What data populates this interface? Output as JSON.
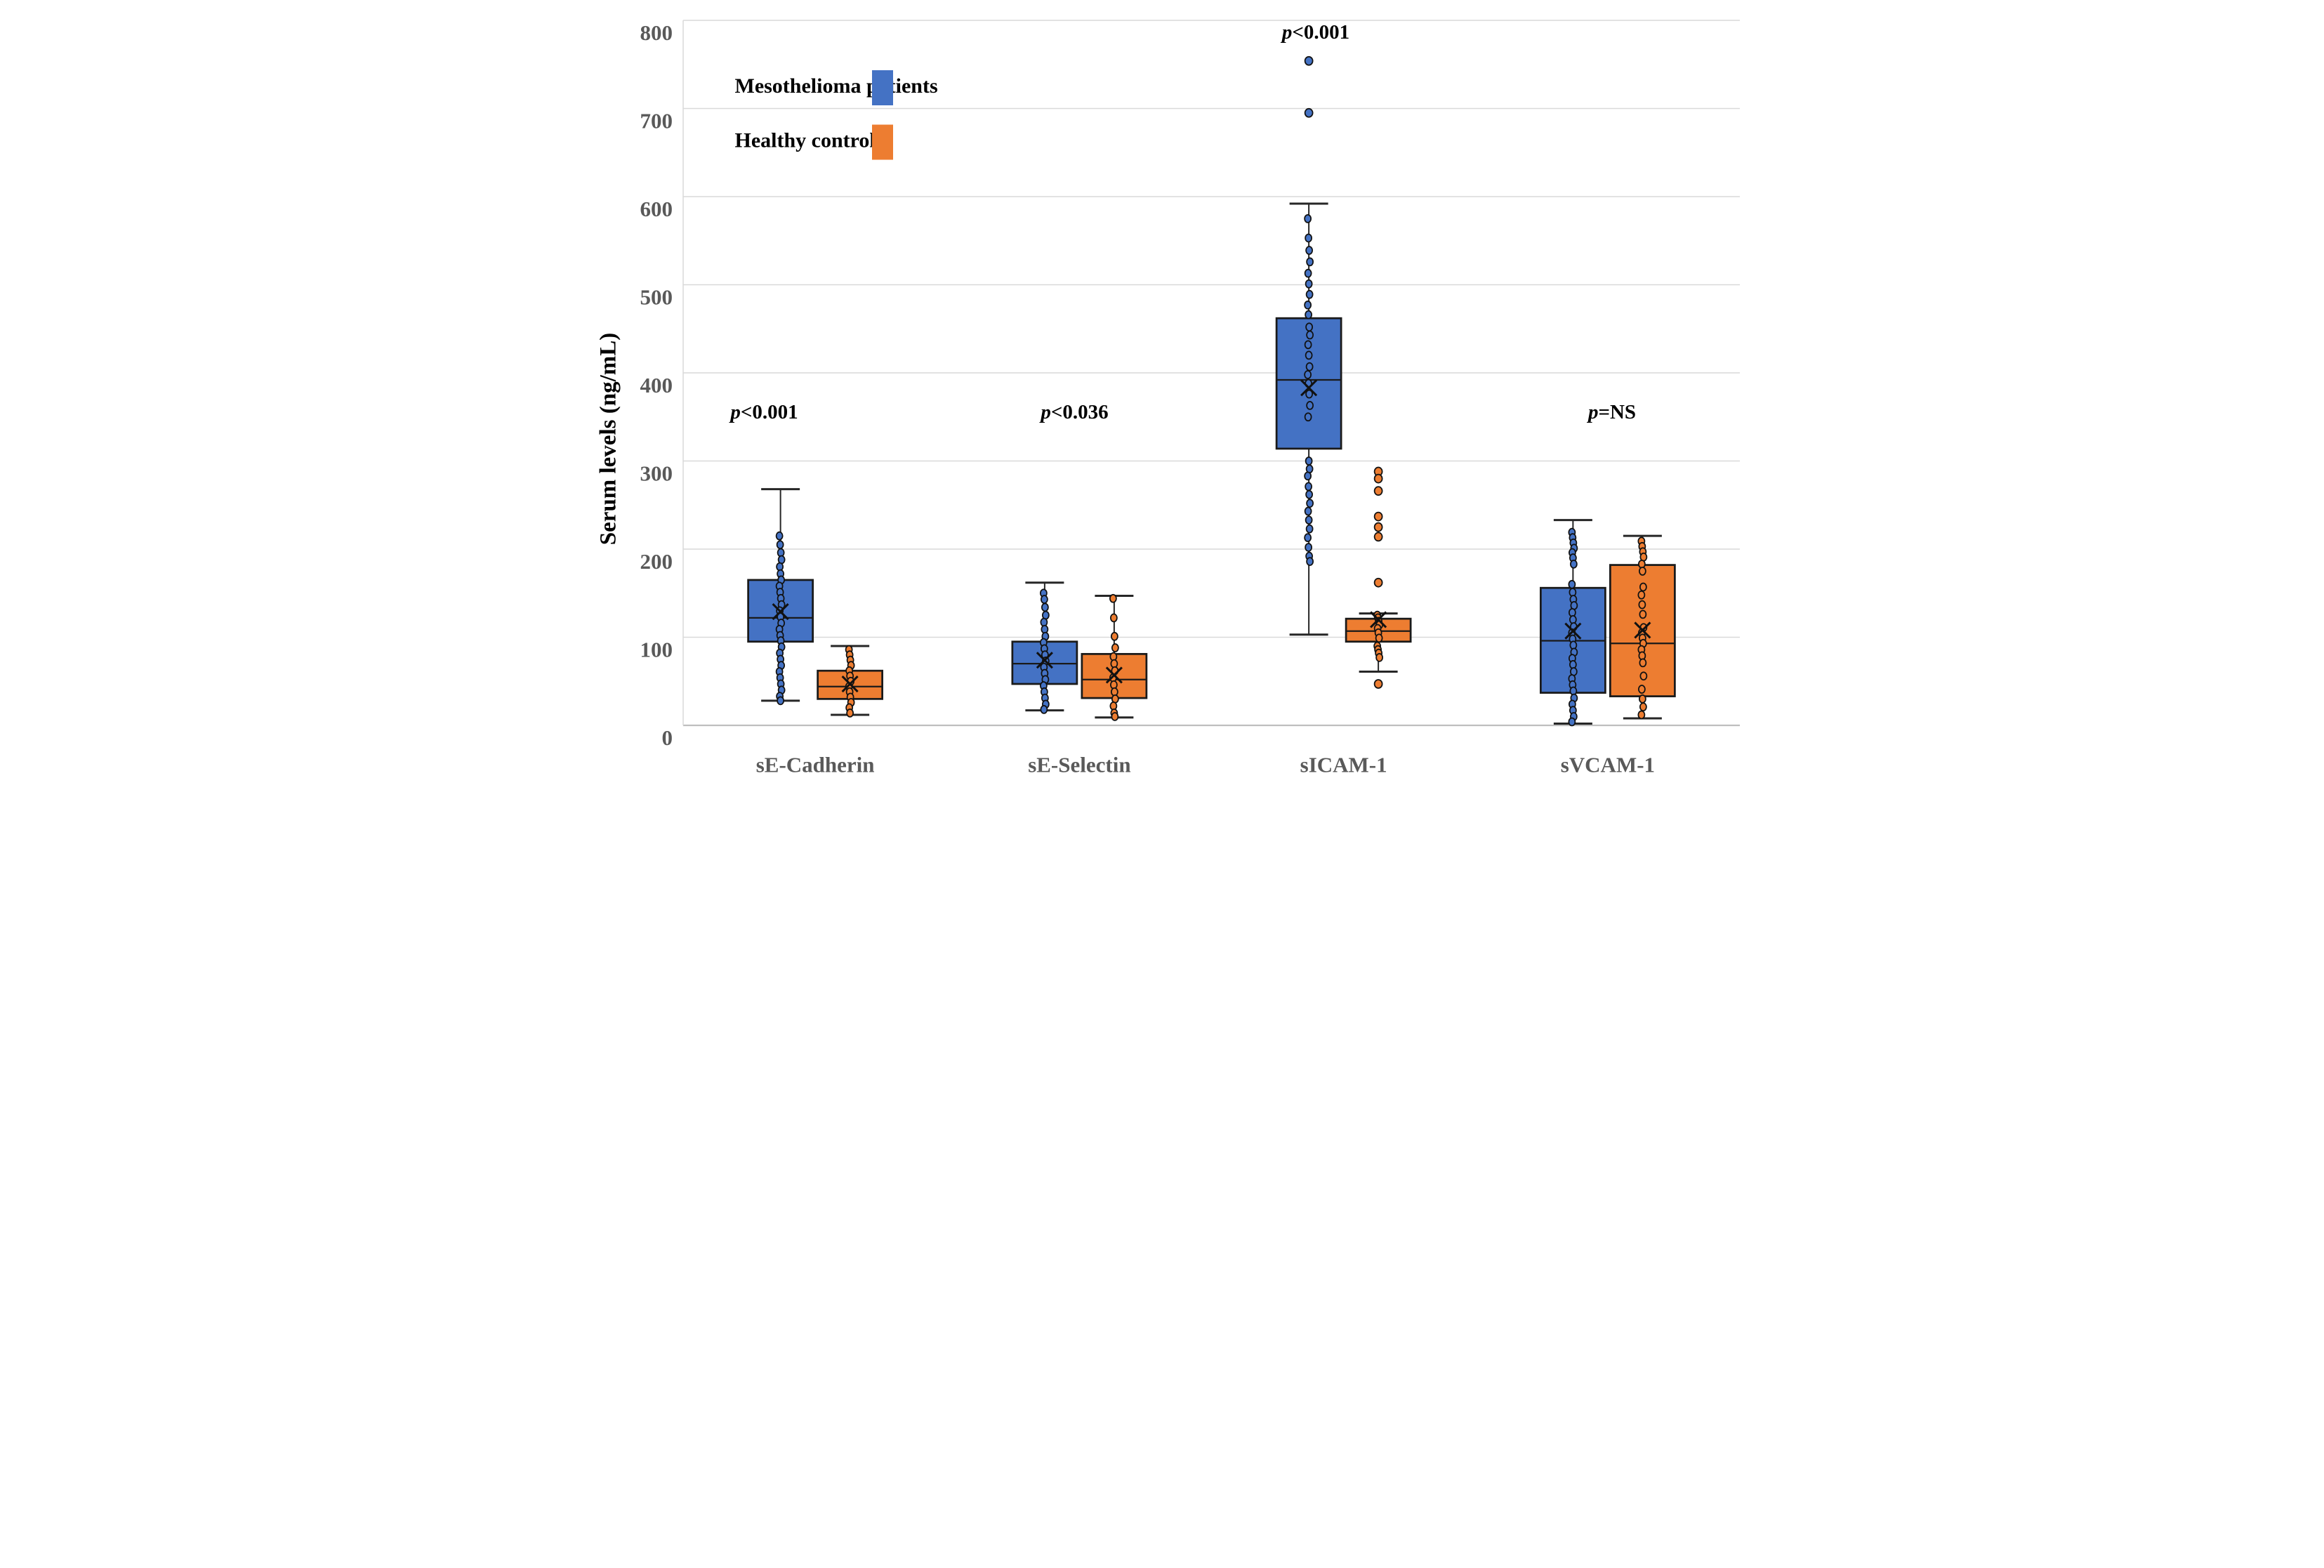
{
  "figure": {
    "background": "#ffffff"
  },
  "chart_data": {
    "type": "boxplot",
    "title": "",
    "xlabel": "",
    "ylabel": "Serum levels (ng/mL)",
    "ylim": [
      0,
      800
    ],
    "yticks": [
      0,
      100,
      200,
      300,
      400,
      500,
      600,
      700,
      800
    ],
    "grid": "horizontal",
    "legend_position": "top-left-inside",
    "categories": [
      "sE-Cadherin",
      "sE-Selectin",
      "sICAM-1",
      "sVCAM-1"
    ],
    "colors": {
      "series1": "#4472C4",
      "series2": "#ED7D31",
      "gridline": "#D9D9D9",
      "axis_line": "#BFBFBF",
      "box_stroke": "#1A1A1A",
      "tick_label": "#595959",
      "annotation_text": "#000000",
      "legend_text": "#000000"
    },
    "series": [
      {
        "name": "Mesothelioma patients",
        "color": "#4472C4",
        "boxes": [
          {
            "category": "sE-Cadherin",
            "min": 28,
            "q1": 95,
            "median": 122,
            "mean": 129,
            "q3": 165,
            "max": 268,
            "outliers": [],
            "points": [
              215,
              205,
              196,
              188,
              180,
              172,
              165,
              158,
              151,
              144,
              137,
              130,
              123,
              116,
              109,
              102,
              96,
              89,
              82,
              75,
              68,
              61,
              54,
              47,
              40,
              33,
              28
            ]
          },
          {
            "category": "sE-Selectin",
            "min": 17,
            "q1": 47,
            "median": 70,
            "mean": 74,
            "q3": 95,
            "max": 162,
            "outliers": [],
            "points": [
              150,
              143,
              134,
              125,
              117,
              109,
              101,
              94,
              87,
              80,
              73,
              66,
              59,
              52,
              45,
              38,
              31,
              24,
              18
            ]
          },
          {
            "category": "sICAM-1",
            "min": 103,
            "q1": 314,
            "median": 392,
            "mean": 383,
            "q3": 462,
            "max": 592,
            "outliers": [
              754,
              695
            ],
            "points": [
              575,
              553,
              539,
              526,
              513,
              501,
              489,
              477,
              466,
              452,
              443,
              432,
              420,
              407,
              398,
              388,
              376,
              363,
              350,
              300,
              291,
              283,
              271,
              262,
              252,
              243,
              233,
              223,
              213,
              202,
              192,
              186
            ]
          },
          {
            "category": "sVCAM-1",
            "min": 2,
            "q1": 37,
            "median": 96,
            "mean": 107,
            "q3": 156,
            "max": 233,
            "outliers": [],
            "points": [
              219,
              213,
              207,
              201,
              196,
              190,
              183,
              160,
              151,
              143,
              136,
              128,
              120,
              112,
              105,
              98,
              91,
              83,
              76,
              69,
              61,
              53,
              46,
              39,
              31,
              24,
              17,
              10,
              4
            ]
          }
        ]
      },
      {
        "name": "Healthy controls",
        "color": "#ED7D31",
        "boxes": [
          {
            "category": "sE-Cadherin",
            "min": 12,
            "q1": 30,
            "median": 44,
            "mean": 47,
            "q3": 62,
            "max": 90,
            "outliers": [],
            "points": [
              86,
              80,
              74,
              68,
              62,
              56,
              50,
              44,
              38,
              32,
              26,
              20,
              14
            ]
          },
          {
            "category": "sE-Selectin",
            "min": 9,
            "q1": 31,
            "median": 52,
            "mean": 57,
            "q3": 81,
            "max": 147,
            "outliers": [],
            "points": [
              144,
              122,
              101,
              88,
              78,
              70,
              62,
              54,
              46,
              38,
              30,
              22,
              14,
              10
            ]
          },
          {
            "category": "sICAM-1",
            "min": 61,
            "q1": 95,
            "median": 107,
            "mean": 120,
            "q3": 121,
            "max": 127,
            "outliers": [
              288,
              280,
              266,
              237,
              225,
              214,
              162,
              47
            ],
            "points": [
              125,
              122,
              118,
              114,
              110,
              105,
              99,
              90,
              86,
              82,
              77
            ]
          },
          {
            "category": "sVCAM-1",
            "min": 8,
            "q1": 33,
            "median": 93,
            "mean": 108,
            "q3": 182,
            "max": 215,
            "outliers": [],
            "points": [
              209,
              203,
              197,
              191,
              183,
              175,
              157,
              148,
              137,
              126,
              111,
              105,
              99,
              93,
              86,
              79,
              71,
              56,
              41,
              30,
              21,
              12
            ]
          }
        ]
      }
    ],
    "annotations": [
      {
        "text": "p<0.001",
        "x": 521,
        "y": 1178
      },
      {
        "text": "p<0.036",
        "x": 1405,
        "y": 1178
      },
      {
        "text": "p<0.001",
        "x": 2092,
        "y": 96
      },
      {
        "text": "p=NS",
        "x": 2936,
        "y": 1178
      }
    ],
    "legend": {
      "rows": [
        {
          "label": "Mesothelioma patients",
          "color": "#4472C4",
          "text_x": 437,
          "swatch_x": 828,
          "center_y": 250
        },
        {
          "label": "Healthy controls",
          "color": "#ED7D31",
          "text_x": 437,
          "swatch_x": 828,
          "center_y": 405
        }
      ],
      "swatch_w": 60,
      "swatch_h": 100
    }
  }
}
